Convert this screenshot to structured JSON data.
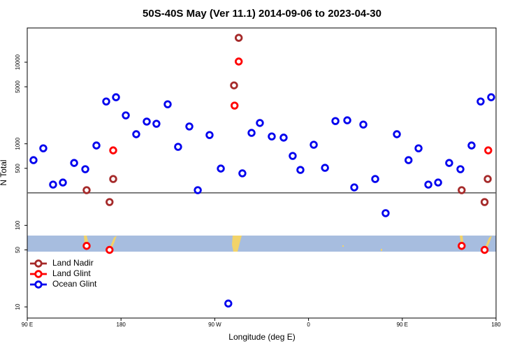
{
  "chart_data": {
    "type": "scatter",
    "title": "50S-40S May (Ver 11.1)   2014-09-06 to 2023-04-30",
    "x_label": "Longitude (deg E)",
    "y_label": "N Total",
    "log_y": true,
    "legend": "bottomleft",
    "xlim": [
      90,
      540
    ],
    "xticks": [
      {
        "value": 90,
        "label": "90 E"
      },
      {
        "value": 180,
        "label": "180"
      },
      {
        "value": 270,
        "label": "90 W"
      },
      {
        "value": 360,
        "label": "0"
      },
      {
        "value": 450,
        "label": "90 E"
      },
      {
        "value": 540,
        "label": "180"
      }
    ],
    "ylim": [
      7.3,
      26300
    ],
    "yticks": [
      10,
      50,
      100,
      500,
      1000,
      5000,
      10000
    ],
    "hline": 250,
    "series": [
      {
        "name": "Land Nadir",
        "color": "#a52a2a",
        "x": [
          147,
          169,
          172.5,
          288.5,
          293,
          507,
          529,
          532
        ],
        "values": [
          270,
          193,
          370,
          5200,
          19900,
          270,
          193,
          370
        ]
      },
      {
        "name": "Land Glint",
        "color": "#ff0000",
        "x": [
          147,
          169,
          172.5,
          289,
          293,
          507,
          529,
          532.5
        ],
        "values": [
          56,
          50,
          830,
          2940,
          10200,
          56,
          50,
          830
        ]
      },
      {
        "name": "Ocean Glint",
        "color": "#0000ee",
        "x": [
          96,
          105.4,
          114.8,
          124.2,
          135,
          145.7,
          156.4,
          165.8,
          175.2,
          184.6,
          194.6,
          204.7,
          214,
          224.8,
          234.8,
          245.6,
          253.7,
          265,
          275.8,
          283,
          296.5,
          305.3,
          313.3,
          324.7,
          336.1,
          344.8,
          352.2,
          365,
          375.8,
          385.8,
          397.2,
          403.9,
          412.6,
          424,
          434,
          444.8,
          456,
          465.6,
          475,
          484.4,
          495,
          505.8,
          516.5,
          525.2,
          535.3
        ],
        "values": [
          630,
          880,
          316,
          335,
          582,
          488,
          953,
          3300,
          3720,
          2230,
          1310,
          1870,
          1760,
          3050,
          917,
          1630,
          270,
          1280,
          497,
          11,
          434,
          1360,
          1800,
          1230,
          1190,
          710,
          478,
          973,
          507,
          1900,
          1940,
          292,
          1720,
          370,
          141,
          1310,
          630,
          880,
          316,
          335,
          582,
          488,
          953,
          3300,
          3720
        ]
      }
    ]
  }
}
